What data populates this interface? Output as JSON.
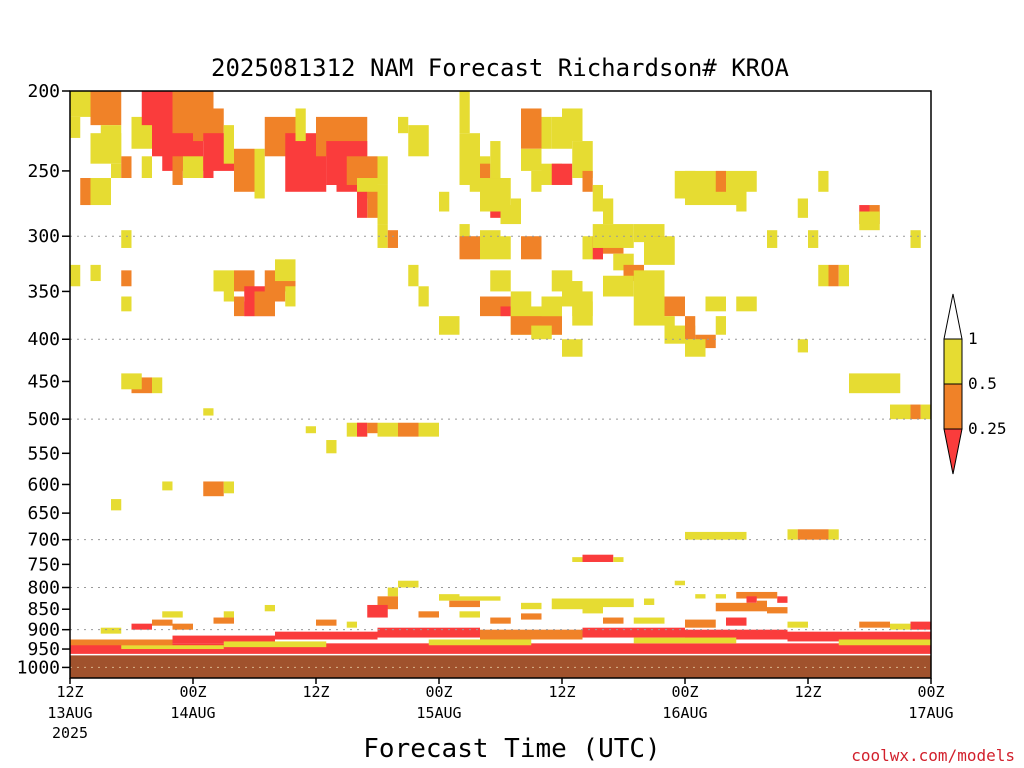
{
  "chart_data": {
    "type": "heatmap",
    "title": "2025081312 NAM Forecast Richardson# KROA",
    "xlabel": "Forecast Time (UTC)",
    "ylabel": "",
    "credit": "coolwx.com/models",
    "y_axis": {
      "scale": "log",
      "reversed": true,
      "range": [
        1030,
        200
      ],
      "ticks": [
        200,
        250,
        300,
        350,
        400,
        450,
        500,
        550,
        600,
        650,
        700,
        750,
        800,
        850,
        900,
        950,
        1000
      ],
      "tick_labels": [
        "200",
        "250",
        "300",
        "350",
        "400",
        "450",
        "500",
        "550",
        "600",
        "650",
        "700",
        "750",
        "800",
        "850",
        "900",
        "950",
        "1000"
      ],
      "gridlines": [
        300,
        400,
        500,
        700,
        800,
        900,
        1000
      ]
    },
    "x_axis": {
      "range_hours": [
        0,
        84
      ],
      "ticks": [
        {
          "hour": 0,
          "line1": "12Z",
          "line2": "13AUG",
          "line3": "2025"
        },
        {
          "hour": 12,
          "line1": "00Z",
          "line2": "14AUG",
          "line3": ""
        },
        {
          "hour": 24,
          "line1": "12Z",
          "line2": "",
          "line3": ""
        },
        {
          "hour": 36,
          "line1": "00Z",
          "line2": "15AUG",
          "line3": ""
        },
        {
          "hour": 48,
          "line1": "12Z",
          "line2": "",
          "line3": ""
        },
        {
          "hour": 60,
          "line1": "00Z",
          "line2": "16AUG",
          "line3": ""
        },
        {
          "hour": 72,
          "line1": "12Z",
          "line2": "",
          "line3": ""
        },
        {
          "hour": 84,
          "line1": "00Z",
          "line2": "17AUG",
          "line3": ""
        }
      ]
    },
    "legend": {
      "placement": "right",
      "labels": [
        "1",
        "0.5",
        "0.25"
      ],
      "colors": {
        "lt_1": "#e6dc32",
        "lt_0_5": "#f08228",
        "lt_0_25": "#fa3c3c"
      }
    },
    "ground": {
      "color": "#a0522d",
      "top_hpa": 965
    },
    "gridline_color": "#999999",
    "cells": [
      [
        0,
        2,
        200,
        215,
        1
      ],
      [
        0,
        1,
        215,
        228,
        1
      ],
      [
        2,
        5,
        200,
        220,
        2
      ],
      [
        3,
        5,
        220,
        240,
        1
      ],
      [
        2,
        5,
        225,
        245,
        1
      ],
      [
        4,
        5,
        245,
        255,
        1
      ],
      [
        2,
        4,
        255,
        275,
        1
      ],
      [
        1,
        2,
        255,
        275,
        2
      ],
      [
        5,
        6,
        240,
        255,
        2
      ],
      [
        7,
        8,
        240,
        255,
        1
      ],
      [
        6,
        8,
        215,
        235,
        1
      ],
      [
        7,
        10,
        200,
        220,
        3
      ],
      [
        8,
        12,
        200,
        240,
        3
      ],
      [
        9,
        13,
        210,
        250,
        3
      ],
      [
        10,
        14,
        200,
        225,
        2
      ],
      [
        12,
        15,
        210,
        230,
        2
      ],
      [
        13,
        16,
        225,
        250,
        3
      ],
      [
        11,
        13,
        240,
        255,
        1
      ],
      [
        13,
        14,
        240,
        255,
        3
      ],
      [
        10,
        11,
        240,
        260,
        2
      ],
      [
        15,
        16,
        220,
        245,
        1
      ],
      [
        16,
        18,
        235,
        265,
        2
      ],
      [
        18,
        19,
        235,
        270,
        1
      ],
      [
        19,
        22,
        215,
        240,
        2
      ],
      [
        21,
        25,
        225,
        265,
        3
      ],
      [
        22,
        23,
        210,
        230,
        1
      ],
      [
        25,
        26,
        225,
        260,
        3
      ],
      [
        24,
        29,
        215,
        240,
        2
      ],
      [
        25,
        29,
        230,
        260,
        3
      ],
      [
        26,
        29,
        245,
        265,
        3
      ],
      [
        27,
        30,
        240,
        260,
        2
      ],
      [
        28,
        30,
        255,
        270,
        1
      ],
      [
        29,
        30,
        265,
        285,
        2
      ],
      [
        28,
        29,
        265,
        285,
        3
      ],
      [
        30,
        31,
        260,
        290,
        1
      ],
      [
        30,
        31,
        240,
        260,
        1
      ],
      [
        33,
        35,
        220,
        240,
        1
      ],
      [
        32,
        33,
        215,
        225,
        1
      ],
      [
        36,
        37,
        265,
        280,
        1
      ],
      [
        38,
        39,
        200,
        225,
        1
      ],
      [
        38,
        40,
        225,
        260,
        1
      ],
      [
        39,
        41,
        240,
        265,
        1
      ],
      [
        40,
        41,
        245,
        265,
        2
      ],
      [
        41,
        42,
        230,
        255,
        1
      ],
      [
        41,
        42,
        255,
        285,
        3
      ],
      [
        40,
        43,
        255,
        280,
        1
      ],
      [
        42,
        44,
        275,
        290,
        1
      ],
      [
        43,
        44,
        270,
        285,
        1
      ],
      [
        44,
        46,
        210,
        235,
        2
      ],
      [
        44,
        46,
        235,
        250,
        1
      ],
      [
        46,
        47,
        215,
        235,
        1
      ],
      [
        45,
        46,
        250,
        265,
        1
      ],
      [
        46,
        48,
        245,
        260,
        1
      ],
      [
        47,
        49,
        245,
        260,
        3
      ],
      [
        47,
        49,
        215,
        235,
        1
      ],
      [
        48,
        50,
        210,
        230,
        1
      ],
      [
        49,
        51,
        230,
        255,
        1
      ],
      [
        50,
        51,
        250,
        265,
        2
      ],
      [
        51,
        52,
        260,
        280,
        1
      ],
      [
        52,
        53,
        270,
        290,
        1
      ],
      [
        59,
        61,
        250,
        270,
        1
      ],
      [
        60,
        66,
        250,
        275,
        1
      ],
      [
        63,
        64,
        250,
        265,
        2
      ],
      [
        64,
        65,
        255,
        270,
        1
      ],
      [
        65,
        66,
        265,
        280,
        1
      ],
      [
        66,
        67,
        250,
        265,
        1
      ],
      [
        71,
        72,
        270,
        285,
        1
      ],
      [
        78,
        79,
        275,
        290,
        2
      ],
      [
        77,
        78,
        275,
        290,
        3
      ],
      [
        77,
        79,
        280,
        295,
        1
      ],
      [
        73,
        74,
        250,
        265,
        1
      ],
      [
        5,
        6,
        295,
        310,
        1
      ],
      [
        0,
        1,
        325,
        345,
        1
      ],
      [
        2,
        3,
        325,
        340,
        1
      ],
      [
        5,
        6,
        330,
        345,
        2
      ],
      [
        5,
        6,
        355,
        370,
        1
      ],
      [
        14,
        16,
        330,
        350,
        1
      ],
      [
        16,
        18,
        330,
        350,
        2
      ],
      [
        17,
        20,
        345,
        375,
        3
      ],
      [
        16,
        17,
        355,
        375,
        2
      ],
      [
        17,
        18,
        360,
        375,
        3
      ],
      [
        18,
        20,
        350,
        375,
        2
      ],
      [
        19,
        21,
        330,
        360,
        2
      ],
      [
        20,
        22,
        330,
        350,
        2
      ],
      [
        21,
        22,
        345,
        365,
        1
      ],
      [
        20,
        22,
        320,
        340,
        1
      ],
      [
        15,
        16,
        345,
        360,
        1
      ],
      [
        30,
        31,
        290,
        310,
        1
      ],
      [
        31,
        32,
        295,
        310,
        2
      ],
      [
        33,
        34,
        325,
        345,
        1
      ],
      [
        34,
        35,
        345,
        365,
        1
      ],
      [
        36,
        38,
        375,
        395,
        1
      ],
      [
        38,
        39,
        290,
        305,
        1
      ],
      [
        38,
        40,
        300,
        320,
        2
      ],
      [
        40,
        42,
        295,
        320,
        1
      ],
      [
        42,
        43,
        300,
        320,
        1
      ],
      [
        44,
        46,
        300,
        320,
        2
      ],
      [
        41,
        43,
        330,
        350,
        1
      ],
      [
        43,
        45,
        350,
        375,
        1
      ],
      [
        40,
        43,
        355,
        375,
        2
      ],
      [
        42,
        43,
        365,
        375,
        3
      ],
      [
        43,
        48,
        365,
        395,
        1
      ],
      [
        43,
        48,
        375,
        395,
        2
      ],
      [
        46,
        48,
        355,
        375,
        1
      ],
      [
        45,
        47,
        385,
        400,
        1
      ],
      [
        47,
        49,
        330,
        350,
        1
      ],
      [
        48,
        50,
        340,
        365,
        1
      ],
      [
        49,
        51,
        350,
        375,
        1
      ],
      [
        49,
        51,
        360,
        385,
        1
      ],
      [
        48,
        50,
        400,
        420,
        1
      ],
      [
        50,
        52,
        300,
        320,
        1
      ],
      [
        51,
        52,
        300,
        320,
        3
      ],
      [
        52,
        54,
        295,
        315,
        2
      ],
      [
        51,
        55,
        290,
        310,
        1
      ],
      [
        53,
        55,
        315,
        330,
        1
      ],
      [
        54,
        56,
        325,
        340,
        2
      ],
      [
        52,
        55,
        335,
        355,
        1
      ],
      [
        55,
        58,
        330,
        355,
        1
      ],
      [
        55,
        58,
        290,
        305,
        1
      ],
      [
        57,
        58,
        300,
        315,
        2
      ],
      [
        56,
        59,
        300,
        325,
        1
      ],
      [
        55,
        58,
        355,
        385,
        1
      ],
      [
        58,
        60,
        355,
        375,
        2
      ],
      [
        58,
        59,
        375,
        395,
        1
      ],
      [
        58,
        61,
        385,
        405,
        1
      ],
      [
        60,
        61,
        375,
        400,
        2
      ],
      [
        61,
        63,
        395,
        410,
        2
      ],
      [
        60,
        62,
        400,
        420,
        1
      ],
      [
        63,
        64,
        375,
        395,
        1
      ],
      [
        62,
        64,
        355,
        370,
        1
      ],
      [
        65,
        67,
        355,
        370,
        1
      ],
      [
        68,
        69,
        295,
        310,
        1
      ],
      [
        72,
        73,
        295,
        310,
        1
      ],
      [
        73,
        74,
        325,
        345,
        1
      ],
      [
        74,
        75,
        325,
        345,
        2
      ],
      [
        75,
        76,
        325,
        345,
        1
      ],
      [
        71,
        72,
        400,
        415,
        1
      ],
      [
        82,
        83,
        295,
        310,
        1
      ],
      [
        6,
        8,
        445,
        465,
        2
      ],
      [
        5,
        7,
        440,
        460,
        1
      ],
      [
        8,
        9,
        445,
        465,
        1
      ],
      [
        13,
        14,
        485,
        495,
        1
      ],
      [
        27,
        29,
        505,
        525,
        1
      ],
      [
        28,
        29,
        505,
        525,
        3
      ],
      [
        29,
        30,
        505,
        520,
        2
      ],
      [
        30,
        32,
        505,
        525,
        1
      ],
      [
        32,
        34,
        505,
        525,
        2
      ],
      [
        34,
        36,
        505,
        525,
        1
      ],
      [
        23,
        24,
        510,
        520,
        1
      ],
      [
        25,
        26,
        530,
        550,
        1
      ],
      [
        9,
        10,
        595,
        610,
        1
      ],
      [
        13,
        15,
        595,
        620,
        2
      ],
      [
        15,
        16,
        595,
        615,
        1
      ],
      [
        4,
        5,
        625,
        645,
        1
      ],
      [
        76,
        81,
        440,
        465,
        1
      ],
      [
        80,
        82,
        480,
        500,
        1
      ],
      [
        82,
        83,
        480,
        500,
        2
      ],
      [
        83,
        84,
        480,
        500,
        1
      ],
      [
        60,
        62,
        685,
        700,
        1
      ],
      [
        62,
        66,
        685,
        700,
        1
      ],
      [
        70,
        71,
        680,
        700,
        1
      ],
      [
        71,
        74,
        680,
        700,
        2
      ],
      [
        74,
        75,
        680,
        700,
        1
      ],
      [
        49,
        50,
        735,
        745,
        1
      ],
      [
        50,
        53,
        730,
        745,
        3
      ],
      [
        53,
        54,
        735,
        745,
        1
      ],
      [
        32,
        34,
        785,
        800,
        1
      ],
      [
        31,
        32,
        800,
        820,
        1
      ],
      [
        30,
        32,
        820,
        850,
        2
      ],
      [
        29,
        31,
        840,
        870,
        3
      ],
      [
        36,
        38,
        815,
        830,
        1
      ],
      [
        38,
        42,
        820,
        830,
        1
      ],
      [
        37,
        40,
        830,
        845,
        2
      ],
      [
        44,
        46,
        835,
        850,
        1
      ],
      [
        47,
        52,
        825,
        850,
        1
      ],
      [
        50,
        52,
        845,
        860,
        1
      ],
      [
        52,
        55,
        825,
        845,
        1
      ],
      [
        56,
        57,
        825,
        840,
        1
      ],
      [
        59,
        60,
        785,
        795,
        1
      ],
      [
        61,
        62,
        815,
        825,
        1
      ],
      [
        63,
        64,
        815,
        825,
        1
      ],
      [
        65,
        69,
        810,
        825,
        2
      ],
      [
        66,
        67,
        820,
        835,
        3
      ],
      [
        67,
        68,
        830,
        845,
        2
      ],
      [
        69,
        70,
        820,
        835,
        3
      ],
      [
        63,
        68,
        835,
        855,
        2
      ],
      [
        68,
        70,
        845,
        860,
        2
      ],
      [
        19,
        20,
        840,
        855,
        1
      ],
      [
        15,
        16,
        855,
        870,
        1
      ],
      [
        14,
        16,
        870,
        885,
        2
      ],
      [
        9,
        11,
        855,
        870,
        1
      ],
      [
        8,
        10,
        875,
        890,
        2
      ],
      [
        6,
        8,
        885,
        900,
        3
      ],
      [
        3,
        5,
        895,
        910,
        1
      ],
      [
        10,
        12,
        885,
        900,
        2
      ],
      [
        24,
        26,
        875,
        890,
        2
      ],
      [
        27,
        28,
        880,
        895,
        1
      ],
      [
        34,
        36,
        855,
        870,
        2
      ],
      [
        38,
        40,
        855,
        870,
        1
      ],
      [
        41,
        43,
        870,
        885,
        2
      ],
      [
        44,
        46,
        860,
        875,
        2
      ],
      [
        52,
        54,
        870,
        885,
        2
      ],
      [
        55,
        58,
        870,
        885,
        1
      ],
      [
        60,
        63,
        875,
        895,
        2
      ],
      [
        64,
        66,
        870,
        890,
        3
      ],
      [
        70,
        72,
        880,
        895,
        1
      ],
      [
        77,
        80,
        880,
        895,
        2
      ],
      [
        80,
        82,
        885,
        900,
        1
      ],
      [
        82,
        84,
        880,
        900,
        3
      ]
    ],
    "low_level_bands": [
      [
        0,
        84,
        935,
        965,
        3
      ],
      [
        0,
        10,
        925,
        940,
        2
      ],
      [
        10,
        20,
        915,
        935,
        3
      ],
      [
        20,
        30,
        905,
        925,
        3
      ],
      [
        30,
        40,
        895,
        920,
        3
      ],
      [
        40,
        50,
        900,
        925,
        2
      ],
      [
        50,
        60,
        895,
        920,
        3
      ],
      [
        60,
        70,
        900,
        925,
        3
      ],
      [
        70,
        84,
        905,
        930,
        3
      ],
      [
        5,
        15,
        940,
        950,
        1
      ],
      [
        15,
        25,
        930,
        945,
        1
      ],
      [
        35,
        45,
        925,
        940,
        1
      ],
      [
        55,
        65,
        920,
        935,
        1
      ],
      [
        75,
        84,
        925,
        940,
        1
      ]
    ]
  }
}
